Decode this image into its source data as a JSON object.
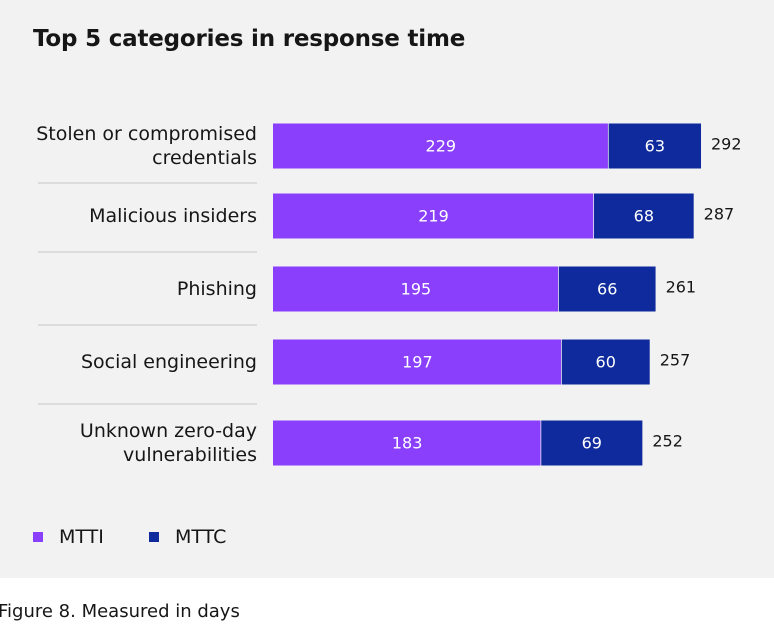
{
  "chart_data": {
    "type": "bar",
    "orientation": "horizontal",
    "stacked": true,
    "title": "Top 5 categories in response time",
    "categories": [
      [
        "Stolen or compromised",
        "credentials"
      ],
      [
        "Malicious insiders"
      ],
      [
        "Phishing"
      ],
      [
        "Social engineering"
      ],
      [
        "Unknown zero-day",
        "vulnerabilities"
      ]
    ],
    "series": [
      {
        "name": "MTTI",
        "values": [
          229,
          219,
          195,
          197,
          183
        ],
        "color": "#8a3ffc"
      },
      {
        "name": "MTTC",
        "values": [
          63,
          68,
          66,
          60,
          69
        ],
        "color": "#0f2a9c"
      }
    ],
    "totals": [
      292,
      287,
      261,
      257,
      252
    ],
    "xlim": [
      0,
      292
    ],
    "legend_position": "bottom-left",
    "grid": false
  },
  "caption": "Figure 8. Measured in days"
}
